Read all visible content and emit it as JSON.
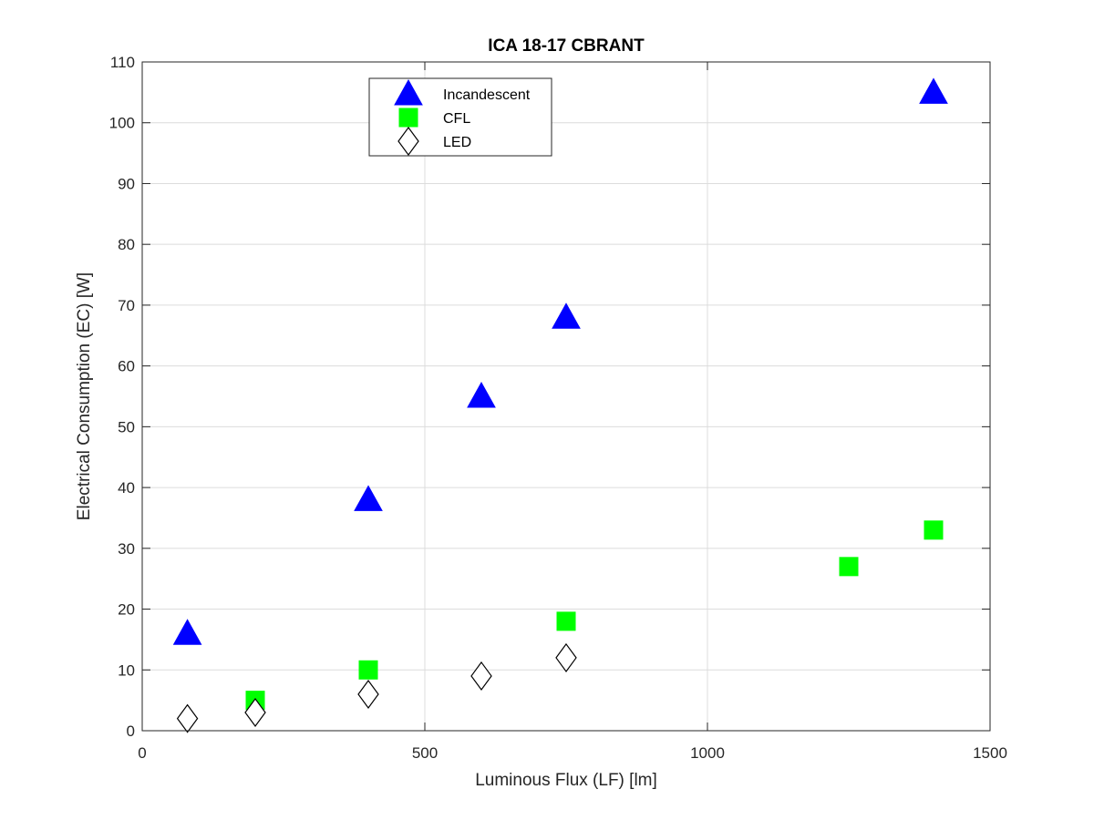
{
  "chart_data": {
    "type": "scatter",
    "title": "ICA 18-17 CBRANT",
    "xlabel": "Luminous Flux (LF) [lm]",
    "ylabel": "Electrical Consumption (EC) [W]",
    "xlim": [
      0,
      1500
    ],
    "ylim": [
      0,
      110
    ],
    "xticks": [
      0,
      500,
      1000,
      1500
    ],
    "yticks": [
      0,
      10,
      20,
      30,
      40,
      50,
      60,
      70,
      80,
      90,
      100,
      110
    ],
    "grid": true,
    "legend_position": "top-center",
    "series": [
      {
        "name": "Incandescent",
        "marker": "triangle",
        "color": "#0000ff",
        "points": [
          [
            80,
            16
          ],
          [
            400,
            38
          ],
          [
            600,
            55
          ],
          [
            750,
            68
          ],
          [
            1400,
            105
          ]
        ]
      },
      {
        "name": "CFL",
        "marker": "square",
        "color": "#00ff00",
        "points": [
          [
            200,
            5
          ],
          [
            400,
            10
          ],
          [
            750,
            18
          ],
          [
            1250,
            27
          ],
          [
            1400,
            33
          ]
        ]
      },
      {
        "name": "LED",
        "marker": "diamond",
        "color": "#ffffff",
        "points": [
          [
            80,
            2
          ],
          [
            200,
            3
          ],
          [
            400,
            6
          ],
          [
            600,
            9
          ],
          [
            750,
            12
          ]
        ]
      }
    ]
  }
}
